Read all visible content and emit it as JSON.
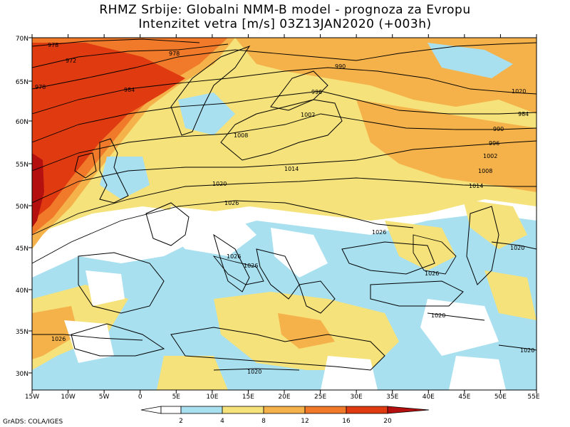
{
  "header": {
    "title_line1": "RHMZ Srbije: Globalni NMM-B model - prognoza za Evropu",
    "title_line2": "Intenzitet vetra [m/s] 03Z13JAN2020 (+003h)"
  },
  "map": {
    "lon_labels": [
      "15W",
      "10W",
      "5W",
      "0",
      "5E",
      "10E",
      "15E",
      "20E",
      "25E",
      "30E",
      "35E",
      "40E",
      "45E",
      "50E",
      "55E"
    ],
    "lat_labels": [
      "70N",
      "65N",
      "60N",
      "55N",
      "50N",
      "45N",
      "40N",
      "35N",
      "30N"
    ],
    "isobar_labels": [
      "978",
      "972",
      "978",
      "978",
      "984",
      "990",
      "996",
      "1002",
      "1008",
      "1014",
      "1020",
      "1026",
      "1026",
      "1026",
      "1020",
      "1026",
      "1020",
      "1020",
      "984",
      "990",
      "996",
      "1002",
      "1008",
      "1014",
      "1026",
      "1026",
      "1020",
      "1020"
    ],
    "colors": {
      "c0_2": "#ffffff",
      "c2_4": "#a8e0f0",
      "c4_8": "#f5e27a",
      "c8_12": "#f5b24a",
      "c12_16": "#f07a2a",
      "c16_20": "#e03a10",
      "c20p": "#b41010"
    }
  },
  "legend": {
    "ticks": [
      "2",
      "4",
      "8",
      "12",
      "16",
      "20"
    ]
  },
  "footer": {
    "credit": "GrADS: COLA/IGES"
  }
}
